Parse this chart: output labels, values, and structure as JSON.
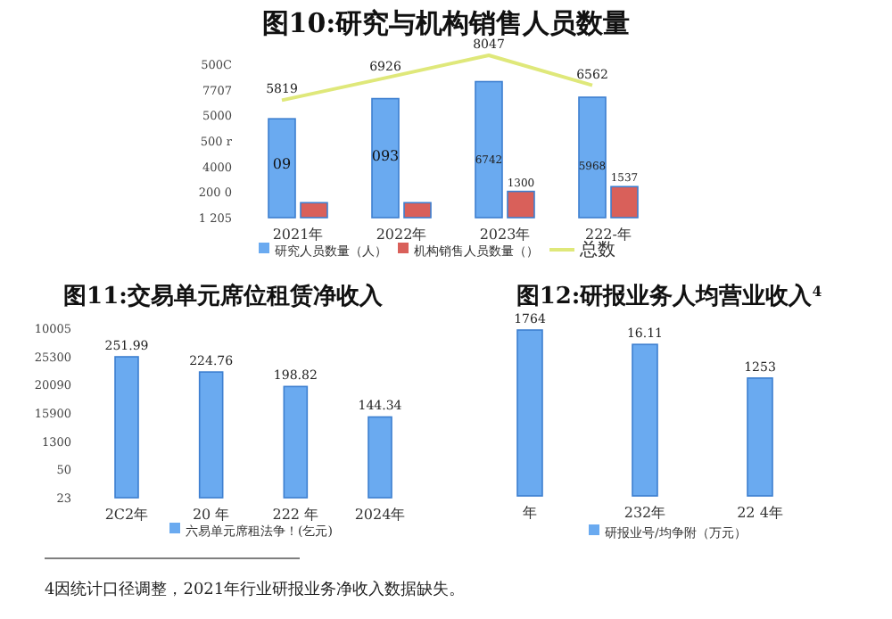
{
  "chart_data": [
    {
      "type": "bar",
      "title": "图10:研究与机构销售人员数量",
      "categories": [
        "2021年",
        "2022年",
        "2023年",
        "222-年"
      ],
      "legend": "bottom",
      "series": [
        {
          "name": "研究人员数量（人）",
          "color": "#6aaaf0",
          "values": [
            4900,
            5900,
            6742,
            5968
          ],
          "value_labels": [
            null,
            null,
            "6742",
            "5968"
          ]
        },
        {
          "name": "机构销售人员数量（）",
          "color": "#d9605a",
          "values": [
            740,
            740,
            1300,
            1537
          ],
          "value_labels": [
            null,
            null,
            "1300",
            "1537"
          ]
        },
        {
          "name": "总数",
          "type": "line",
          "color": "#dfe87a",
          "values": [
            5819,
            6926,
            8047,
            6562
          ],
          "value_labels": [
            "5819",
            "6926",
            "8047",
            "6562"
          ]
        }
      ],
      "annotations": [
        "500C",
        "7707",
        "5000",
        "500 r",
        "4000",
        "200 0",
        "1 205",
        {
          "text": "09",
          "x": "2021年",
          "y": 2700
        },
        {
          "text": "093",
          "x": "2022年",
          "y": 3100
        }
      ]
    },
    {
      "type": "bar",
      "title": "图11:交易单元席位租赁净收入",
      "categories": [
        "2C2年",
        "20 年",
        "222 年",
        "2024年"
      ],
      "data_labels": true,
      "legend": "bottom",
      "series": [
        {
          "name": "六易单元席租法争！(乞元)",
          "color": "#6aaaf0",
          "values": [
            251.99,
            224.76,
            198.82,
            144.34
          ]
        }
      ],
      "annotations": [
        "10005",
        "25300",
        "20090",
        "15900",
        "1300",
        "50",
        "23"
      ]
    },
    {
      "type": "bar",
      "title": "图12:研报业务人均营业收入$^{4}$",
      "categories": [
        "年",
        "232年",
        "22 4年"
      ],
      "legend": "bottom",
      "series": [
        {
          "name": "研报业号/均争附（万元）",
          "color": "#6aaaf0",
          "values": [
            17.64,
            16.11,
            12.53
          ],
          "value_labels": [
            null,
            "16.11",
            null
          ]
        }
      ],
      "annotations": [
        "4因统计口径调整，2021年行业研报业务净收入数据缺失。",
        {
          "text": "1764",
          "x": "年",
          "y": 17.64
        },
        {
          "text": "1253",
          "x": "22 4年",
          "y": 12.53
        }
      ]
    }
  ]
}
